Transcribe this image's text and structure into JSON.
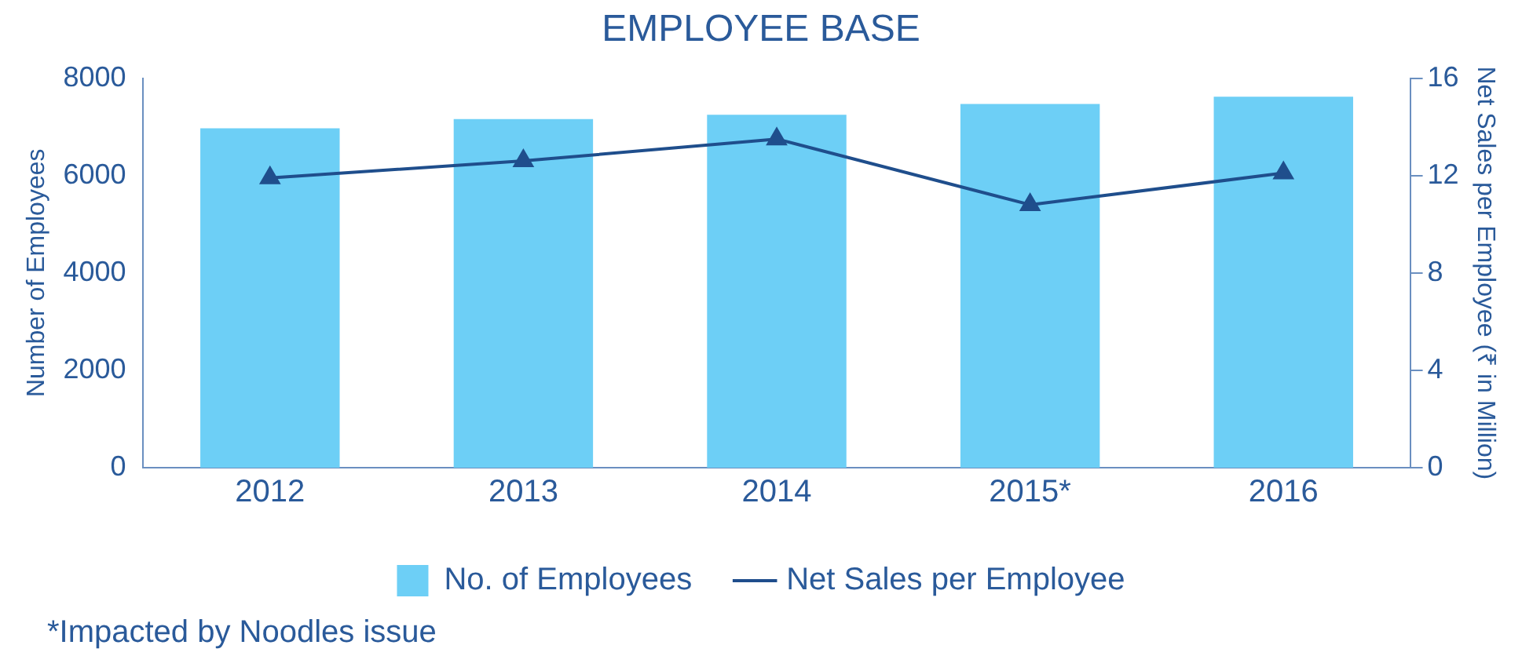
{
  "chart_data": {
    "type": "bar",
    "title": "EMPLOYEE BASE",
    "categories": [
      "2012",
      "2013",
      "2014",
      "2015*",
      "2016"
    ],
    "ylabel": "Number of Employees",
    "y2label": "Net Sales per Employee (₹ in Million)",
    "series": [
      {
        "name": "No. of Employees",
        "color": "#6dcff6",
        "values": [
          6970,
          7160,
          7250,
          7470,
          7620
        ]
      },
      {
        "name": "Net Sales per Employee",
        "type": "line",
        "axis": "y2",
        "color": "#1f4e8c",
        "marker": "triangle",
        "values": [
          11.9,
          12.6,
          13.5,
          10.8,
          12.1
        ]
      }
    ],
    "ylim": [
      0,
      8000
    ],
    "yticks": [
      0,
      2000,
      4000,
      6000,
      8000
    ],
    "y2lim": [
      0,
      16
    ],
    "y2ticks": [
      0,
      4,
      8,
      12,
      16
    ],
    "grid": false,
    "legend": "bottom",
    "annotations": [
      "*Impacted by Noodles issue"
    ]
  }
}
